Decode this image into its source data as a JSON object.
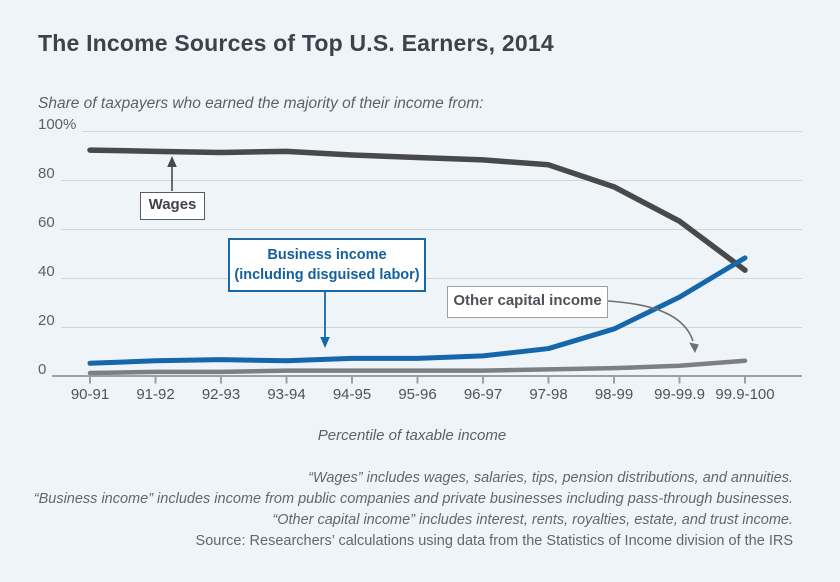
{
  "title": "The Income Sources of Top U.S. Earners, 2014",
  "subtitle": "Share of taxpayers who earned the majority of their income from:",
  "chart_data": {
    "type": "line",
    "title": "The Income Sources of Top U.S. Earners, 2014",
    "xlabel": "Percentile of taxable income",
    "ylabel": "",
    "ylim": [
      0,
      100
    ],
    "grid": true,
    "legend": "annotated-callouts",
    "categories": [
      "90-91",
      "91-92",
      "92-93",
      "93-94",
      "94-95",
      "95-96",
      "96-97",
      "97-98",
      "98-99",
      "99-99.9",
      "99.9-100"
    ],
    "yticks": [
      {
        "label": "100%",
        "value": 100
      },
      {
        "label": "80",
        "value": 80
      },
      {
        "label": "60",
        "value": 60
      },
      {
        "label": "40",
        "value": 40
      },
      {
        "label": "20",
        "value": 20
      },
      {
        "label": "0",
        "value": 0
      }
    ],
    "series": [
      {
        "name": "Wages",
        "color": "#48494b",
        "values": [
          92,
          91.5,
          91,
          91.5,
          90,
          89,
          88,
          86,
          77,
          63,
          43
        ]
      },
      {
        "name": "Business income (including disguised labor)",
        "color": "#1467aa",
        "values": [
          5,
          6,
          6.5,
          6,
          7,
          7,
          8,
          11,
          19,
          32,
          48
        ]
      },
      {
        "name": "Other capital income",
        "color": "#7e7f83",
        "values": [
          1,
          1.5,
          1.5,
          2,
          2,
          2,
          2,
          2.5,
          3,
          4,
          6
        ]
      }
    ]
  },
  "annotations": {
    "wages": {
      "label": "Wages"
    },
    "business": {
      "line1": "Business income",
      "line2": "(including disguised labor)"
    },
    "other_capital": {
      "label": "Other capital income"
    }
  },
  "axis": {
    "x_title": "Percentile of taxable income"
  },
  "footnotes": [
    {
      "text": "“Wages” includes wages, salaries, tips, pension distributions, and annuities.",
      "italic": true
    },
    {
      "text": "“Business income” includes income from public companies and private businesses including pass-through businesses.",
      "italic": true
    },
    {
      "text": "“Other capital income” includes interest, rents, royalties, estate, and trust income.",
      "italic": true
    },
    {
      "text": "Source: Researchers’ calculations using data from the Statistics of Income division of the IRS",
      "italic": false
    }
  ],
  "colors": {
    "background": "#eff4f9",
    "title": "#3d434c",
    "muted_text": "#5a6169",
    "axis": "#9aa1a8",
    "gridline": "#cfd6dc",
    "tick_label": "#4c545c",
    "wages": "#48494b",
    "business": "#1467aa",
    "other_capital": "#7e7f83",
    "footnote": "#60686f",
    "business_box_border": "#1767a9",
    "business_text": "#135f9f",
    "wages_box_border": "#595b5e",
    "other_box_border": "#9b9ea2",
    "annotation_text": "#3e4349",
    "other_text": "#4e5257",
    "arrow_gray": "#6b7075"
  }
}
